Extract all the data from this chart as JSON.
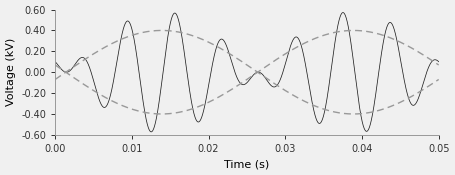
{
  "title": "",
  "xlabel": "Time (s)",
  "ylabel": "Voltage (kV)",
  "xlim": [
    0,
    0.05
  ],
  "ylim": [
    -0.6,
    0.6
  ],
  "xticks": [
    0.0,
    0.01,
    0.02,
    0.03,
    0.04,
    0.05
  ],
  "yticks": [
    -0.6,
    -0.4,
    -0.2,
    0.0,
    0.2,
    0.4,
    0.6
  ],
  "output_freq": 20,
  "carrier_freq": 160,
  "amplitude": 0.58,
  "ref_amplitude": 0.4,
  "ref_freq": 20,
  "ref_phase_deg": -10,
  "carrier_phase_deg": -90,
  "solid_color": "#222222",
  "dashed_color": "#999999",
  "background_color": "#f0f0f0",
  "fig_width": 4.55,
  "fig_height": 1.75,
  "dpi": 100
}
